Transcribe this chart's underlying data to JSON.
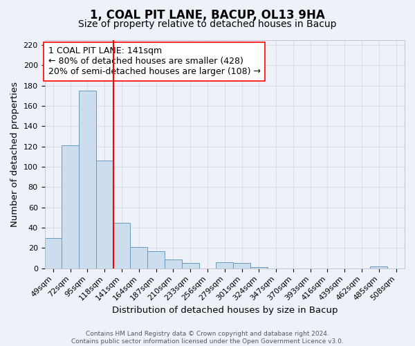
{
  "title": "1, COAL PIT LANE, BACUP, OL13 9HA",
  "subtitle": "Size of property relative to detached houses in Bacup",
  "xlabel": "Distribution of detached houses by size in Bacup",
  "ylabel": "Number of detached properties",
  "footer_lines": [
    "Contains HM Land Registry data © Crown copyright and database right 2024.",
    "Contains public sector information licensed under the Open Government Licence v3.0."
  ],
  "bin_labels": [
    "49sqm",
    "72sqm",
    "95sqm",
    "118sqm",
    "141sqm",
    "164sqm",
    "187sqm",
    "210sqm",
    "233sqm",
    "256sqm",
    "279sqm",
    "301sqm",
    "324sqm",
    "347sqm",
    "370sqm",
    "393sqm",
    "416sqm",
    "439sqm",
    "462sqm",
    "485sqm",
    "508sqm"
  ],
  "bar_heights": [
    30,
    121,
    175,
    106,
    45,
    21,
    17,
    9,
    5,
    0,
    6,
    5,
    1,
    0,
    0,
    0,
    0,
    0,
    0,
    2,
    0
  ],
  "bar_color": "#ccdded",
  "bar_edge_color": "#6699bb",
  "vline_x": 4,
  "vline_color": "red",
  "annotation_line1": "1 COAL PIT LANE: 141sqm",
  "annotation_line2": "← 80% of detached houses are smaller (428)",
  "annotation_line3": "20% of semi-detached houses are larger (108) →",
  "ylim": [
    0,
    225
  ],
  "yticks": [
    0,
    20,
    40,
    60,
    80,
    100,
    120,
    140,
    160,
    180,
    200,
    220
  ],
  "bg_color": "#eef2f8",
  "grid_color": "#d8dde8",
  "title_fontsize": 12,
  "subtitle_fontsize": 10,
  "axis_label_fontsize": 9.5,
  "tick_fontsize": 8,
  "annotation_fontsize": 9
}
